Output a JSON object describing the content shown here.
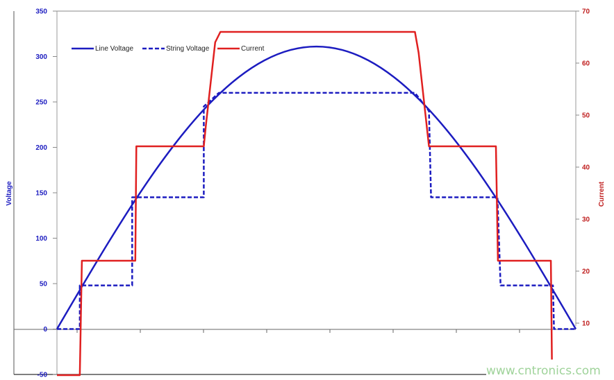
{
  "chart_data": {
    "type": "line",
    "title": "",
    "xlabel": "",
    "ylabel": "Voltage",
    "y2label": "Current",
    "xlim": [
      0,
      1
    ],
    "ylim": [
      -50,
      350
    ],
    "y2lim": [
      0,
      70
    ],
    "yticks": [
      "350",
      "300",
      "250",
      "200",
      "150",
      "100",
      "50",
      "0",
      "-50"
    ],
    "y2ticks": [
      "70",
      "60",
      "50",
      "40",
      "30",
      "20",
      "10"
    ],
    "grid": false,
    "legend_position": "top-left",
    "series": [
      {
        "name": "Line Voltage",
        "axis": "left",
        "style": "solid",
        "color": "#1c1cc0",
        "points": [
          [
            0,
            0
          ],
          [
            0.05,
            48.6
          ],
          [
            0.1,
            96.1
          ],
          [
            0.15,
            141.2
          ],
          [
            0.2,
            182.8
          ],
          [
            0.25,
            219.9
          ],
          [
            0.3,
            251.6
          ],
          [
            0.35,
            277.1
          ],
          [
            0.4,
            295.8
          ],
          [
            0.45,
            307.2
          ],
          [
            0.5,
            311
          ],
          [
            0.55,
            307.2
          ],
          [
            0.6,
            295.8
          ],
          [
            0.65,
            277.1
          ],
          [
            0.7,
            251.6
          ],
          [
            0.75,
            219.9
          ],
          [
            0.8,
            182.8
          ],
          [
            0.85,
            141.2
          ],
          [
            0.9,
            96.1
          ],
          [
            0.95,
            48.6
          ],
          [
            1,
            0
          ]
        ]
      },
      {
        "name": "String Voltage",
        "axis": "left",
        "style": "dashed",
        "color": "#1c1cc0",
        "points": [
          [
            0,
            0
          ],
          [
            0.044,
            0
          ],
          [
            0.044,
            48
          ],
          [
            0.145,
            48
          ],
          [
            0.145,
            145
          ],
          [
            0.283,
            145
          ],
          [
            0.283,
            245
          ],
          [
            0.312,
            260
          ],
          [
            0.69,
            260
          ],
          [
            0.717,
            240
          ],
          [
            0.721,
            145
          ],
          [
            0.849,
            145
          ],
          [
            0.855,
            48
          ],
          [
            0.956,
            48
          ],
          [
            0.958,
            0
          ],
          [
            1,
            0
          ]
        ]
      },
      {
        "name": "Current",
        "axis": "right",
        "style": "solid",
        "color": "#e02020",
        "points": [
          [
            0,
            0
          ],
          [
            0.044,
            0
          ],
          [
            0.048,
            22
          ],
          [
            0.151,
            22
          ],
          [
            0.153,
            44
          ],
          [
            0.283,
            44
          ],
          [
            0.287,
            48
          ],
          [
            0.305,
            64
          ],
          [
            0.315,
            66
          ],
          [
            0.69,
            66
          ],
          [
            0.697,
            62
          ],
          [
            0.717,
            44
          ],
          [
            0.846,
            44
          ],
          [
            0.85,
            22
          ],
          [
            0.952,
            22
          ],
          [
            0.954,
            3
          ]
        ]
      }
    ]
  },
  "watermark": "www.cntronics.com"
}
